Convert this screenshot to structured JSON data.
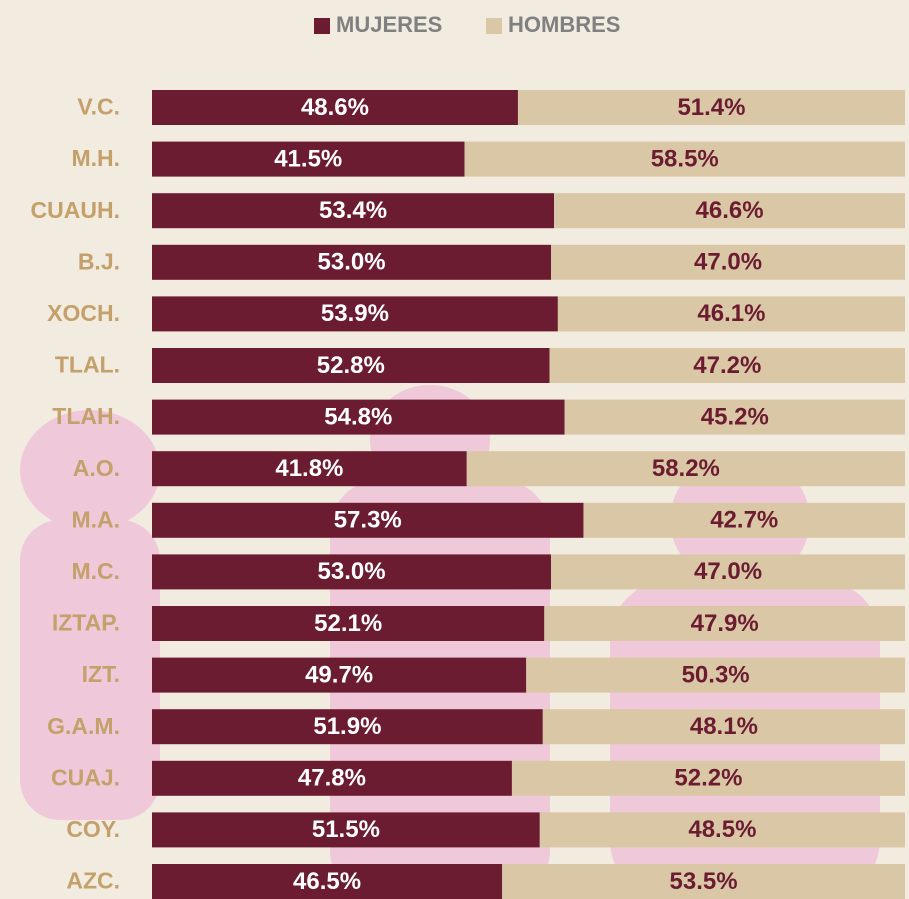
{
  "chart_data": {
    "type": "stacked-bar-100",
    "categories": [
      "V.C.",
      "M.H.",
      "CUAUH.",
      "B.J.",
      "XOCH.",
      "TLAL.",
      "TLAH.",
      "A.O.",
      "M.A.",
      "M.C.",
      "IZTAP.",
      "IZT.",
      "G.A.M.",
      "CUAJ.",
      "COY.",
      "AZC."
    ],
    "series": [
      {
        "name": "MUJERES",
        "color": "#6b1c31",
        "label_color": "#ffffff",
        "values": [
          48.6,
          41.5,
          53.4,
          53.0,
          53.9,
          52.8,
          54.8,
          41.8,
          57.3,
          53.0,
          52.1,
          49.7,
          51.9,
          47.8,
          51.5,
          46.5
        ],
        "value_labels": [
          "48.6%",
          "41.5%",
          "53.4%",
          "53.0%",
          "53.9%",
          "52.8%",
          "54.8%",
          "41.8%",
          "57.3%",
          "53.0%",
          "52.1%",
          "49.7%",
          "51.9%",
          "47.8%",
          "51.5%",
          "46.5%"
        ]
      },
      {
        "name": "HOMBRES",
        "color": "#dac7a6",
        "label_color": "#6b1c31",
        "values": [
          51.4,
          58.5,
          46.6,
          47.0,
          46.1,
          47.2,
          45.2,
          58.2,
          42.7,
          47.0,
          47.9,
          50.3,
          48.1,
          52.2,
          48.5,
          53.5
        ],
        "value_labels": [
          "51.4%",
          "58.5%",
          "46.6%",
          "47.0%",
          "46.1%",
          "47.2%",
          "45.2%",
          "58.2%",
          "42.7%",
          "47.0%",
          "47.9%",
          "50.3%",
          "48.1%",
          "52.2%",
          "48.5%",
          "53.5%"
        ]
      }
    ],
    "xlim": [
      0,
      100
    ],
    "category_color": "#c4a06a",
    "legend_text_color": "#808080"
  }
}
